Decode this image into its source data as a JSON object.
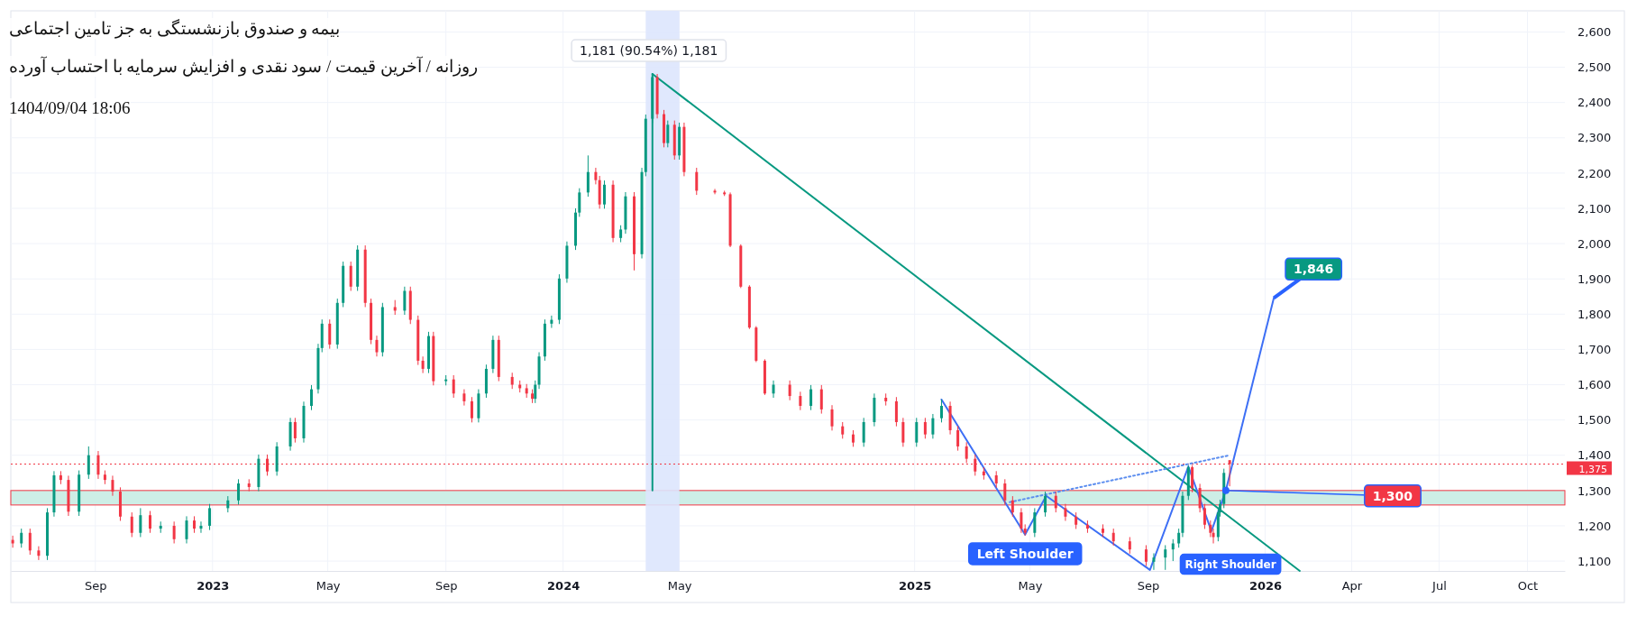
{
  "chart_data": {
    "type": "candlestick",
    "title": "بیمه و صندوق بازنشستگی به جز تامین اجتماعی",
    "subtitle": "روزانه / آخرین قیمت / سود نقدی و افزایش سرمایه با احتساب آورده",
    "annotations": [
      "1404/09/04 18:06",
      {
        "text": "1,181 (90.54%) 1,181",
        "x": "2024-04-03",
        "y": 2481
      },
      {
        "text": "Left Shoulder",
        "x": "2025-04-26",
        "y": 1172
      },
      {
        "text": "Right Shoulder",
        "x": "2025-11-08",
        "y": 1160
      },
      {
        "text": "1,846",
        "x": "2026-01-10",
        "y": 1846
      },
      {
        "text": "1,300",
        "x": "2025-11-21",
        "y": 1300
      }
    ],
    "colors": [
      "#f23645",
      "#089981",
      "#f23645",
      "#f23645",
      "#089981",
      "#089981",
      "#f23645",
      "#f23645",
      "#089981",
      "#089981",
      "#f23645",
      "#f23645",
      "#f23645",
      "#f23645",
      "#f23645",
      "#089981",
      "#f23645",
      "#089981",
      "#f23645",
      "#089981",
      "#f23645",
      "#089981",
      "#089981",
      "#089981",
      "#089981",
      "#f23645",
      "#089981",
      "#f23645",
      "#089981",
      "#089981",
      "#f23645",
      "#089981",
      "#089981",
      "#089981",
      "#089981",
      "#f23645",
      "#089981",
      "#089981",
      "#f23645",
      "#089981",
      "#f23645",
      "#f23645",
      "#f23645",
      "#089981",
      "#f23645",
      "#089981",
      "#f23645",
      "#f23645",
      "#f23645",
      "#089981",
      "#f23645",
      "#089981",
      "#f23645",
      "#f23645",
      "#f23645",
      "#089981",
      "#089981",
      "#089981",
      "#f23645",
      "#f23645",
      "#f23645",
      "#f23645",
      "#f23645",
      "#089981",
      "#089981",
      "#089981",
      "#089981",
      "#089981",
      "#089981",
      "#089981",
      "#089981",
      "#089981",
      "#f23645",
      "#f23645",
      "#089981",
      "#f23645",
      "#089981",
      "#089981",
      "#f23645",
      "#089981",
      "#089981",
      "#089981",
      "#f23645",
      "#f23645",
      "#089981",
      "#f23645",
      "#089981",
      "#f23645",
      "#f23645",
      "#f23645",
      "#f23645",
      "#f23645",
      "#f23645",
      "#f23645",
      "#f23645",
      "#f23645",
      "#089981",
      "#f23645",
      "#f23645",
      "#089981",
      "#f23645",
      "#f23645",
      "#f23645",
      "#f23645",
      "#089981",
      "#089981",
      "#f23645",
      "#f23645",
      "#f23645",
      "#089981",
      "#f23645",
      "#089981",
      "#089981",
      "#f23645",
      "#f23645",
      "#f23645",
      "#f23645",
      "#f23645",
      "#f23645",
      "#f23645",
      "#f23645",
      "#f23645",
      "#f23645",
      "#089981",
      "#089981",
      "#f23645",
      "#f23645",
      "#f23645",
      "#f23645",
      "#f23645",
      "#f23645",
      "#f23645",
      "#f23645",
      "#089981",
      "#089981",
      "#089981",
      "#089981",
      "#089981",
      "#089981",
      "#f23645",
      "#f23645",
      "#f23645",
      "#f23645",
      "#f23645",
      "#089981",
      "#089981",
      "#089981",
      "#f23645"
    ],
    "x": [
      "2022-06-07",
      "2022-06-16",
      "2022-06-25",
      "2022-07-04",
      "2022-07-13",
      "2022-07-20",
      "2022-07-27",
      "2022-08-04",
      "2022-08-15",
      "2022-08-25",
      "2022-09-04",
      "2022-09-11",
      "2022-09-19",
      "2022-09-27",
      "2022-10-09",
      "2022-10-18",
      "2022-10-28",
      "2022-11-08",
      "2022-11-22",
      "2022-12-05",
      "2022-12-13",
      "2022-12-20",
      "2022-12-29",
      "2023-01-17",
      "2023-01-28",
      "2023-02-08",
      "2023-02-18",
      "2023-02-27",
      "2023-03-09",
      "2023-03-23",
      "2023-03-28",
      "2023-04-06",
      "2023-04-14",
      "2023-04-21",
      "2023-04-25",
      "2023-05-03",
      "2023-05-11",
      "2023-05-17",
      "2023-05-25",
      "2023-06-01",
      "2023-06-09",
      "2023-06-15",
      "2023-06-21",
      "2023-06-27",
      "2023-07-10",
      "2023-07-20",
      "2023-07-26",
      "2023-08-03",
      "2023-08-08",
      "2023-08-14",
      "2023-08-19",
      "2023-09-01",
      "2023-09-09",
      "2023-09-20",
      "2023-09-28",
      "2023-10-05",
      "2023-10-13",
      "2023-10-20",
      "2023-10-26",
      "2023-11-09",
      "2023-11-17",
      "2023-11-24",
      "2023-11-30",
      "2023-12-03",
      "2023-12-07",
      "2023-12-13",
      "2023-12-20",
      "2023-12-28",
      "2024-01-05",
      "2024-01-14",
      "2024-01-18",
      "2024-01-27",
      "2024-02-04",
      "2024-02-08",
      "2024-02-13",
      "2024-02-22",
      "2024-03-01",
      "2024-03-06",
      "2024-03-15",
      "2024-03-23",
      "2024-03-27",
      "2024-04-03",
      "2024-04-08",
      "2024-04-15",
      "2024-04-19",
      "2024-04-26",
      "2024-05-01",
      "2024-05-06",
      "2024-05-19",
      "2024-06-07",
      "2024-06-17",
      "2024-06-23",
      "2024-07-04",
      "2024-07-13",
      "2024-07-20",
      "2024-07-29",
      "2024-08-07",
      "2024-08-24",
      "2024-09-04",
      "2024-09-15",
      "2024-09-26",
      "2024-10-07",
      "2024-10-18",
      "2024-10-29",
      "2024-11-09",
      "2024-11-20",
      "2024-12-02",
      "2024-12-13",
      "2024-12-20",
      "2025-01-03",
      "2025-01-12",
      "2025-01-20",
      "2025-01-29",
      "2025-02-07",
      "2025-02-15",
      "2025-02-24",
      "2025-03-05",
      "2025-03-14",
      "2025-03-27",
      "2025-04-05",
      "2025-04-13",
      "2025-04-22",
      "2025-04-26",
      "2025-05-06",
      "2025-05-17",
      "2025-05-28",
      "2025-06-07",
      "2025-06-18",
      "2025-06-30",
      "2025-07-16",
      "2025-07-27",
      "2025-08-13",
      "2025-08-30",
      "2025-09-07",
      "2025-09-19",
      "2025-09-27",
      "2025-10-03",
      "2025-10-07",
      "2025-10-13",
      "2025-10-17",
      "2025-10-25",
      "2025-10-30",
      "2025-11-05",
      "2025-11-08",
      "2025-11-13",
      "2025-11-15",
      "2025-11-19",
      "2025-11-25"
    ],
    "ohlc": [
      [
        1160,
        1172,
        1138,
        1150
      ],
      [
        1150,
        1192,
        1138,
        1180
      ],
      [
        1180,
        1192,
        1118,
        1130
      ],
      [
        1130,
        1142,
        1103,
        1115
      ],
      [
        1115,
        1250,
        1103,
        1238
      ],
      [
        1238,
        1355,
        1226,
        1343
      ],
      [
        1343,
        1355,
        1318,
        1330
      ],
      [
        1330,
        1342,
        1228,
        1240
      ],
      [
        1240,
        1357,
        1228,
        1345
      ],
      [
        1345,
        1425,
        1333,
        1400
      ],
      [
        1400,
        1412,
        1333,
        1345
      ],
      [
        1345,
        1357,
        1318,
        1330
      ],
      [
        1330,
        1342,
        1285,
        1297
      ],
      [
        1297,
        1309,
        1214,
        1226
      ],
      [
        1226,
        1238,
        1168,
        1180
      ],
      [
        1180,
        1250,
        1168,
        1230
      ],
      [
        1230,
        1242,
        1180,
        1192
      ],
      [
        1192,
        1212,
        1180,
        1200
      ],
      [
        1200,
        1212,
        1150,
        1162
      ],
      [
        1162,
        1227,
        1150,
        1215
      ],
      [
        1215,
        1227,
        1180,
        1192
      ],
      [
        1192,
        1212,
        1180,
        1200
      ],
      [
        1200,
        1262,
        1188,
        1250
      ],
      [
        1250,
        1284,
        1238,
        1272
      ],
      [
        1272,
        1332,
        1260,
        1320
      ],
      [
        1320,
        1332,
        1298,
        1310
      ],
      [
        1310,
        1402,
        1298,
        1390
      ],
      [
        1390,
        1402,
        1342,
        1354
      ],
      [
        1354,
        1437,
        1342,
        1425
      ],
      [
        1425,
        1506,
        1413,
        1494
      ],
      [
        1494,
        1506,
        1436,
        1448
      ],
      [
        1448,
        1552,
        1436,
        1540
      ],
      [
        1540,
        1599,
        1528,
        1587
      ],
      [
        1587,
        1716,
        1575,
        1704
      ],
      [
        1704,
        1785,
        1692,
        1773
      ],
      [
        1773,
        1785,
        1702,
        1714
      ],
      [
        1714,
        1844,
        1702,
        1832
      ],
      [
        1832,
        1949,
        1820,
        1937
      ],
      [
        1937,
        1949,
        1866,
        1878
      ],
      [
        1878,
        1995,
        1866,
        1983
      ],
      [
        1983,
        1995,
        1820,
        1832
      ],
      [
        1832,
        1844,
        1715,
        1727
      ],
      [
        1727,
        1739,
        1680,
        1692
      ],
      [
        1692,
        1832,
        1680,
        1820
      ],
      [
        1820,
        1840,
        1798,
        1810
      ],
      [
        1810,
        1878,
        1798,
        1866
      ],
      [
        1866,
        1878,
        1772,
        1784
      ],
      [
        1784,
        1796,
        1656,
        1668
      ],
      [
        1668,
        1680,
        1633,
        1645
      ],
      [
        1645,
        1750,
        1633,
        1738
      ],
      [
        1738,
        1750,
        1598,
        1610
      ],
      [
        1610,
        1627,
        1598,
        1615
      ],
      [
        1615,
        1627,
        1563,
        1575
      ],
      [
        1575,
        1587,
        1541,
        1553
      ],
      [
        1553,
        1565,
        1493,
        1505
      ],
      [
        1505,
        1587,
        1493,
        1575
      ],
      [
        1575,
        1657,
        1563,
        1645
      ],
      [
        1645,
        1739,
        1633,
        1727
      ],
      [
        1727,
        1739,
        1610,
        1622
      ],
      [
        1622,
        1634,
        1588,
        1600
      ],
      [
        1600,
        1612,
        1578,
        1590
      ],
      [
        1590,
        1602,
        1563,
        1575
      ],
      [
        1575,
        1587,
        1548,
        1560
      ],
      [
        1560,
        1612,
        1548,
        1600
      ],
      [
        1600,
        1692,
        1588,
        1680
      ],
      [
        1680,
        1785,
        1668,
        1773
      ],
      [
        1773,
        1796,
        1761,
        1784
      ],
      [
        1784,
        1913,
        1772,
        1901
      ],
      [
        1901,
        2006,
        1889,
        1994
      ],
      [
        1994,
        2100,
        1982,
        2088
      ],
      [
        2088,
        2157,
        2076,
        2145
      ],
      [
        2145,
        2250,
        2133,
        2203
      ],
      [
        2203,
        2215,
        2168,
        2180
      ],
      [
        2180,
        2192,
        2099,
        2111
      ],
      [
        2111,
        2179,
        2099,
        2167
      ],
      [
        2167,
        2179,
        2004,
        2016
      ],
      [
        2016,
        2052,
        2004,
        2040
      ],
      [
        2040,
        2146,
        2028,
        2134
      ],
      [
        2134,
        2146,
        1924,
        1970
      ],
      [
        1970,
        2215,
        1958,
        2203
      ],
      [
        2203,
        2366,
        2191,
        2354
      ],
      [
        2354,
        2481,
        2342,
        2472
      ],
      [
        2472,
        2481,
        2355,
        2367
      ],
      [
        2367,
        2379,
        2273,
        2285
      ],
      [
        2285,
        2349,
        2273,
        2337
      ],
      [
        2337,
        2349,
        2238,
        2250
      ],
      [
        2250,
        2343,
        2238,
        2331
      ],
      [
        2331,
        2343,
        2191,
        2203
      ],
      [
        2203,
        2215,
        2138,
        2150
      ],
      [
        2150,
        2155,
        2140,
        2145
      ],
      [
        2145,
        2150,
        2135,
        2140
      ],
      [
        2140,
        2145,
        1990,
        1994
      ],
      [
        1994,
        1998,
        1874,
        1878
      ],
      [
        1878,
        1882,
        1758,
        1762
      ],
      [
        1762,
        1766,
        1664,
        1668
      ],
      [
        1668,
        1672,
        1571,
        1575
      ],
      [
        1575,
        1612,
        1563,
        1600
      ],
      [
        1600,
        1612,
        1556,
        1568
      ],
      [
        1568,
        1580,
        1528,
        1540
      ],
      [
        1540,
        1599,
        1528,
        1587
      ],
      [
        1587,
        1599,
        1518,
        1530
      ],
      [
        1530,
        1542,
        1470,
        1482
      ],
      [
        1482,
        1494,
        1447,
        1459
      ],
      [
        1459,
        1471,
        1424,
        1436
      ],
      [
        1436,
        1506,
        1424,
        1494
      ],
      [
        1494,
        1575,
        1482,
        1563
      ],
      [
        1563,
        1575,
        1541,
        1553
      ],
      [
        1553,
        1565,
        1482,
        1494
      ],
      [
        1494,
        1506,
        1424,
        1436
      ],
      [
        1436,
        1506,
        1424,
        1494
      ],
      [
        1494,
        1506,
        1447,
        1459
      ],
      [
        1459,
        1517,
        1447,
        1505
      ],
      [
        1505,
        1558,
        1493,
        1540
      ],
      [
        1540,
        1552,
        1459,
        1471
      ],
      [
        1471,
        1483,
        1413,
        1425
      ],
      [
        1425,
        1437,
        1378,
        1390
      ],
      [
        1390,
        1402,
        1342,
        1354
      ],
      [
        1354,
        1366,
        1331,
        1343
      ],
      [
        1343,
        1355,
        1308,
        1320
      ],
      [
        1320,
        1332,
        1260,
        1272
      ],
      [
        1272,
        1284,
        1226,
        1238
      ],
      [
        1238,
        1250,
        1180,
        1192
      ],
      [
        1192,
        1204,
        1172,
        1180
      ],
      [
        1180,
        1250,
        1168,
        1238
      ],
      [
        1238,
        1297,
        1226,
        1285
      ],
      [
        1285,
        1297,
        1238,
        1250
      ],
      [
        1250,
        1262,
        1214,
        1226
      ],
      [
        1226,
        1238,
        1191,
        1203
      ],
      [
        1203,
        1215,
        1180,
        1192
      ],
      [
        1192,
        1204,
        1168,
        1180
      ],
      [
        1180,
        1192,
        1144,
        1156
      ],
      [
        1156,
        1168,
        1121,
        1133
      ],
      [
        1133,
        1145,
        1086,
        1098
      ],
      [
        1098,
        1122,
        1075,
        1110
      ],
      [
        1110,
        1145,
        1075,
        1133
      ],
      [
        1133,
        1162,
        1100,
        1150
      ],
      [
        1150,
        1192,
        1138,
        1180
      ],
      [
        1180,
        1297,
        1168,
        1285
      ],
      [
        1285,
        1372,
        1273,
        1366
      ],
      [
        1366,
        1372,
        1295,
        1307
      ],
      [
        1307,
        1319,
        1238,
        1250
      ],
      [
        1250,
        1262,
        1191,
        1203
      ],
      [
        1203,
        1215,
        1168,
        1180
      ],
      [
        1180,
        1192,
        1150,
        1168
      ],
      [
        1168,
        1250,
        1156,
        1238
      ],
      [
        1238,
        1274,
        1226,
        1262
      ],
      [
        1262,
        1362,
        1250,
        1350
      ],
      [
        1386,
        1386,
        1312,
        1375
      ]
    ],
    "series": [
      {
        "type": "line",
        "x": [
          "2024-04-03",
          "2026-02-06"
        ],
        "values": [
          2481,
          1072
        ],
        "color": "#089981"
      },
      {
        "type": "line",
        "x": [
          "2024-04-03",
          "2024-04-03"
        ],
        "values": [
          1300,
          2481
        ],
        "color": "#089981"
      },
      {
        "type": "line",
        "x": [
          "2025-01-29",
          "2025-04-26",
          "2025-05-18",
          "2025-09-03",
          "2025-10-13",
          "2025-11-06",
          "2025-11-21",
          "2026-01-10"
        ],
        "values": [
          1558,
          1175,
          1285,
          1075,
          1368,
          1185,
          1300,
          1846
        ],
        "color": "#3d6ff5"
      },
      {
        "type": "line",
        "x": [
          "2025-04-10",
          "2025-11-25"
        ],
        "values": [
          1267,
          1400
        ],
        "color": "#5b8def",
        "line_style": "dotted"
      }
    ],
    "ref_lines": [
      {
        "axis": "y",
        "value": 1375,
        "label": "1,375",
        "color": "#f23645",
        "line_style": "dotted"
      }
    ],
    "bands": [
      {
        "axis": "y",
        "from": 1259,
        "to": 1300,
        "color": "#cdeee6"
      },
      {
        "axis": "x",
        "from": "2024-03-27",
        "to": "2024-05-01",
        "color": "#dde5fd"
      }
    ],
    "xlim": [
      "2022-06-05",
      "2026-11-09"
    ],
    "xticks": [
      {
        "value": "2022-09-01",
        "label": "Sep"
      },
      {
        "value": "2023-01-01",
        "label": "2023"
      },
      {
        "value": "2023-05-01",
        "label": "May"
      },
      {
        "value": "2023-09-01",
        "label": "Sep"
      },
      {
        "value": "2024-01-01",
        "label": "2024"
      },
      {
        "value": "2024-05-01",
        "label": "May"
      },
      {
        "value": "2025-01-01",
        "label": "2025"
      },
      {
        "value": "2025-05-01",
        "label": "May"
      },
      {
        "value": "2025-09-01",
        "label": "Sep"
      },
      {
        "value": "2026-01-01",
        "label": "2026"
      },
      {
        "value": "2026-04-01",
        "label": "Apr"
      },
      {
        "value": "2026-07-01",
        "label": "Jul"
      },
      {
        "value": "2026-10-01",
        "label": "Oct"
      }
    ],
    "ylim": [
      1072,
      2660
    ],
    "yticks": [
      {
        "value": 1100,
        "label": "1,100"
      },
      {
        "value": 1200,
        "label": "1,200"
      },
      {
        "value": 1300,
        "label": "1,300"
      },
      {
        "value": 1400,
        "label": "1,400"
      },
      {
        "value": 1500,
        "label": "1,500"
      },
      {
        "value": 1600,
        "label": "1,600"
      },
      {
        "value": 1700,
        "label": "1,700"
      },
      {
        "value": 1800,
        "label": "1,800"
      },
      {
        "value": 1900,
        "label": "1,900"
      },
      {
        "value": 2000,
        "label": "2,000"
      },
      {
        "value": 2100,
        "label": "2,100"
      },
      {
        "value": 2200,
        "label": "2,200"
      },
      {
        "value": 2300,
        "label": "2,300"
      },
      {
        "value": 2400,
        "label": "2,400"
      },
      {
        "value": 2500,
        "label": "2,500"
      },
      {
        "value": 2600,
        "label": "2,600"
      }
    ],
    "grid": true
  }
}
